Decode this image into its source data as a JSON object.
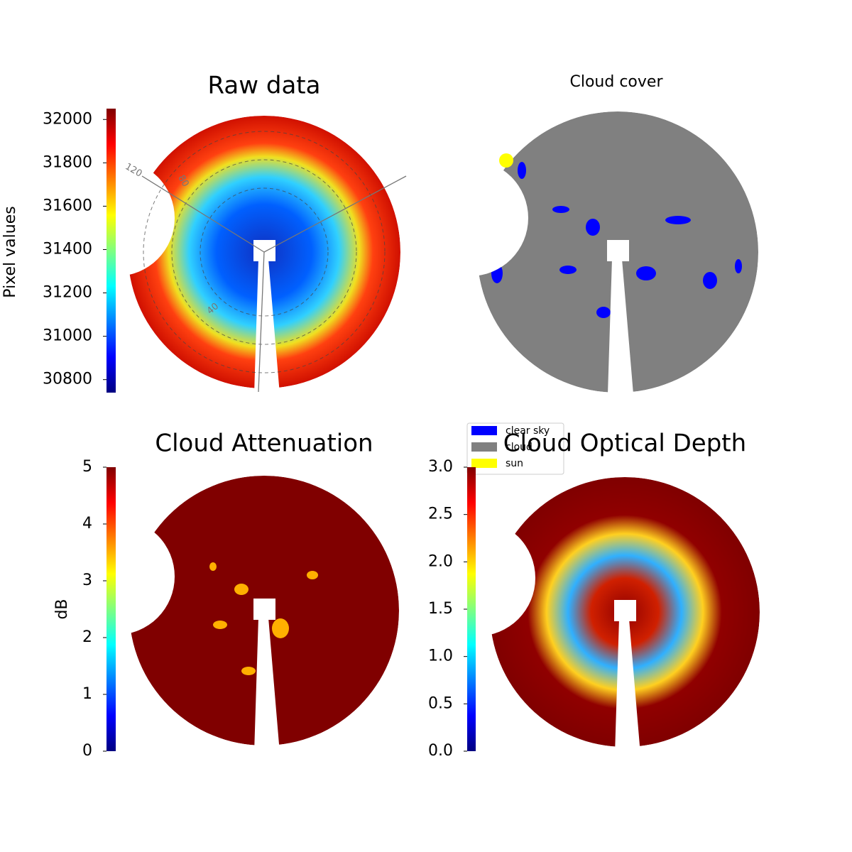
{
  "chart_data": [
    {
      "type": "image",
      "title": "Raw data",
      "colorbar": {
        "label": "Pixel values",
        "lim": [
          30740,
          32050
        ],
        "ticks": [
          30800,
          31000,
          31200,
          31400,
          31600,
          31800,
          32000
        ]
      },
      "polar_labels": [
        "120",
        "80",
        "40"
      ]
    },
    {
      "type": "image",
      "title": "Cloud cover",
      "legend": {
        "entries": [
          {
            "name": "clear sky",
            "color": "#0000ff"
          },
          {
            "name": "cloud",
            "color": "#808080"
          },
          {
            "name": "sun",
            "color": "#ffff00"
          }
        ]
      }
    },
    {
      "type": "image",
      "title": "Cloud Attenuation",
      "colorbar": {
        "label": "dB",
        "lim": [
          0,
          5
        ],
        "ticks": [
          0,
          1,
          2,
          3,
          4,
          5
        ]
      }
    },
    {
      "type": "image",
      "title": "Cloud Optical Depth",
      "colorbar": {
        "lim": [
          0,
          3
        ],
        "ticks": [
          {
            "value": 0,
            "label": "0.0"
          },
          0.5,
          {
            "value": 1,
            "label": "1.0"
          },
          1.5,
          {
            "value": 2,
            "label": "2.0"
          },
          2.5,
          {
            "value": 3,
            "label": "3.0"
          }
        ]
      }
    }
  ]
}
